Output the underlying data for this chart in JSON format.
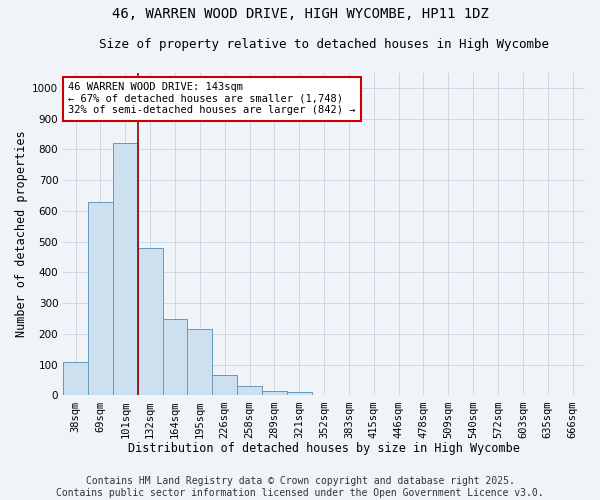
{
  "title": "46, WARREN WOOD DRIVE, HIGH WYCOMBE, HP11 1DZ",
  "subtitle": "Size of property relative to detached houses in High Wycombe",
  "xlabel": "Distribution of detached houses by size in High Wycombe",
  "ylabel": "Number of detached properties",
  "categories": [
    "38sqm",
    "69sqm",
    "101sqm",
    "132sqm",
    "164sqm",
    "195sqm",
    "226sqm",
    "258sqm",
    "289sqm",
    "321sqm",
    "352sqm",
    "383sqm",
    "415sqm",
    "446sqm",
    "478sqm",
    "509sqm",
    "540sqm",
    "572sqm",
    "603sqm",
    "635sqm",
    "666sqm"
  ],
  "values": [
    110,
    630,
    820,
    480,
    250,
    215,
    65,
    30,
    15,
    10,
    0,
    0,
    0,
    0,
    0,
    0,
    0,
    0,
    0,
    0,
    0
  ],
  "bar_color": "#cde0f0",
  "bar_edge_color": "#6699bb",
  "property_line_x": 2.5,
  "annotation_text": "46 WARREN WOOD DRIVE: 143sqm\n← 67% of detached houses are smaller (1,748)\n32% of semi-detached houses are larger (842) →",
  "annotation_box_color": "#ffffff",
  "annotation_border_color": "#cc0000",
  "ylim": [
    0,
    1050
  ],
  "yticks": [
    0,
    100,
    200,
    300,
    400,
    500,
    600,
    700,
    800,
    900,
    1000
  ],
  "footer_line1": "Contains HM Land Registry data © Crown copyright and database right 2025.",
  "footer_line2": "Contains public sector information licensed under the Open Government Licence v3.0.",
  "bg_color": "#f0f4f8",
  "grid_color": "#c8d4e0",
  "title_fontsize": 10,
  "subtitle_fontsize": 9,
  "axis_label_fontsize": 8.5,
  "tick_fontsize": 7.5,
  "annotation_fontsize": 7.5,
  "footer_fontsize": 7
}
